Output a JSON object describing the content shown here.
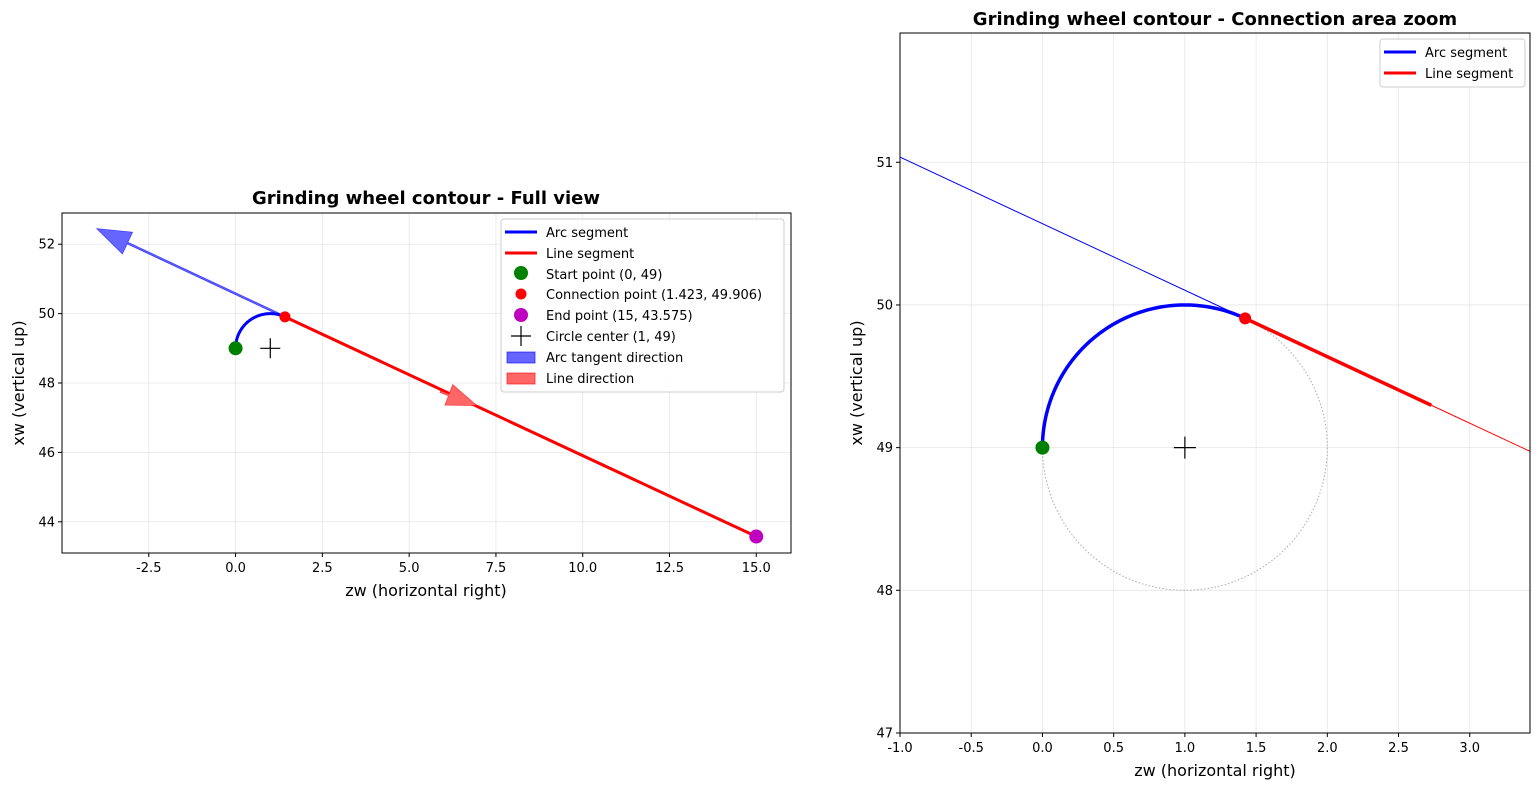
{
  "chart_data": [
    {
      "type": "line",
      "title": "Grinding wheel contour - Full view",
      "xlabel": "zw (horizontal right)",
      "ylabel": "xw (vertical up)",
      "xlim": [
        -5,
        16
      ],
      "ylim": [
        43.1,
        52.9
      ],
      "xticks": [
        -2.5,
        0.0,
        2.5,
        5.0,
        7.5,
        10.0,
        12.5,
        15.0
      ],
      "xtick_labels": [
        "-2.5",
        "0.0",
        "2.5",
        "5.0",
        "7.5",
        "10.0",
        "12.5",
        "15.0"
      ],
      "yticks": [
        44,
        46,
        48,
        50,
        52
      ],
      "ytick_labels": [
        "44",
        "46",
        "48",
        "50",
        "52"
      ],
      "grid": true,
      "legend_position": "upper right",
      "arc": {
        "center": [
          1,
          49
        ],
        "radius": 1,
        "start": [
          0,
          49
        ],
        "end": [
          1.423,
          49.906
        ]
      },
      "line": {
        "start": [
          1.423,
          49.906
        ],
        "end": [
          15,
          43.575
        ]
      },
      "points": {
        "start": [
          0,
          49
        ],
        "connection": [
          1.423,
          49.906
        ],
        "end": [
          15,
          43.575
        ],
        "center": [
          1,
          49
        ]
      },
      "arrows": {
        "arc_tangent": {
          "from": [
            1.423,
            49.906
          ],
          "to": [
            -4,
            52.45
          ]
        },
        "line_direction": {
          "from": [
            5.9,
            47.75
          ],
          "to": [
            6.95,
            47.35
          ]
        }
      },
      "legend": [
        "Arc segment",
        "Line segment",
        "Start point (0, 49)",
        "Connection point (1.423, 49.906)",
        "End point (15, 43.575)",
        "Circle center (1, 49)",
        "Arc tangent direction",
        "Line direction"
      ]
    },
    {
      "type": "line",
      "title": "Grinding wheel contour - Connection area zoom",
      "xlabel": "zw (horizontal right)",
      "ylabel": "xw (vertical up)",
      "xlim": [
        -1.0,
        3.423
      ],
      "ylim": [
        47.0,
        51.906
      ],
      "xticks": [
        -1.0,
        -0.5,
        0.0,
        0.5,
        1.0,
        1.5,
        2.0,
        2.5,
        3.0
      ],
      "xtick_labels": [
        "-1.0",
        "-0.5",
        "0.0",
        "0.5",
        "1.0",
        "1.5",
        "2.0",
        "2.5",
        "3.0"
      ],
      "yticks": [
        47,
        48,
        49,
        50,
        51
      ],
      "ytick_labels": [
        "47",
        "48",
        "49",
        "50",
        "51"
      ],
      "grid": true,
      "legend_position": "upper right",
      "arc": {
        "center": [
          1,
          49
        ],
        "radius": 1,
        "start": [
          0,
          49
        ],
        "end": [
          1.423,
          49.906
        ]
      },
      "full_circle_dotted": true,
      "line_segment_bold": {
        "start": [
          1.423,
          49.906
        ],
        "end": [
          2.73,
          49.297
        ]
      },
      "tangent_extension": {
        "from": [
          1.423,
          49.906
        ],
        "to": [
          -1.0,
          51.036
        ]
      },
      "line_extension": {
        "from": [
          2.73,
          49.297
        ],
        "to": [
          3.423,
          48.974
        ]
      },
      "points": {
        "start": [
          0,
          49
        ],
        "connection": [
          1.423,
          49.906
        ],
        "center": [
          1,
          49
        ]
      },
      "legend": [
        "Arc segment",
        "Line segment"
      ]
    }
  ],
  "colors": {
    "arc": "#0000ff",
    "line": "#ff0000",
    "start": "#008000",
    "connection": "#ff0000",
    "end": "#bf00bf",
    "center": "#000000",
    "arc_arrow": "#6666ff",
    "line_arrow": "#ff6666"
  }
}
